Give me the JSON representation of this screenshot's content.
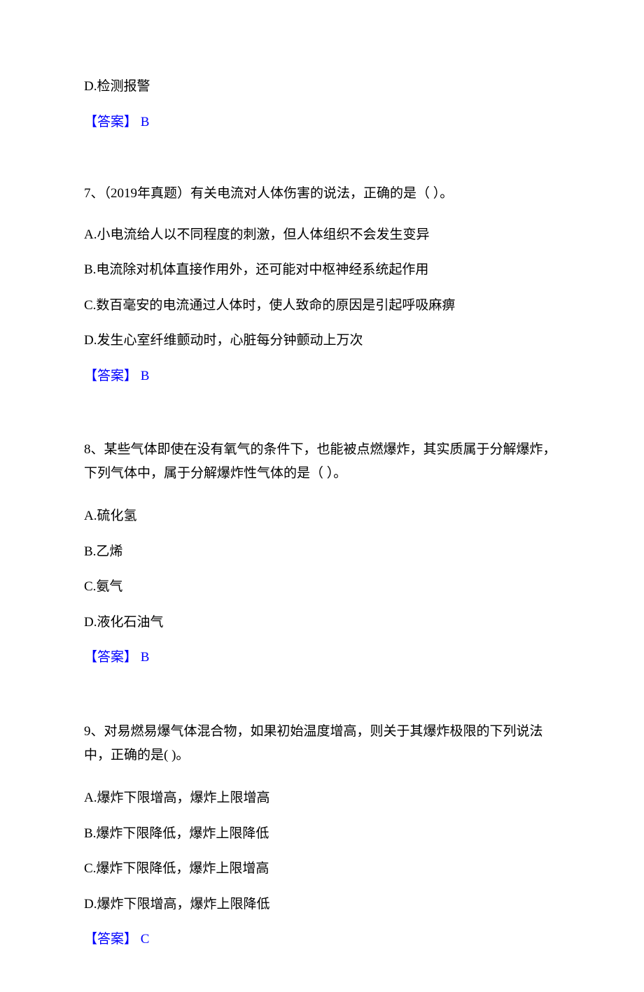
{
  "q6": {
    "optionD": "D.检测报警",
    "answerLabel": "【答案】",
    "answerValue": " B"
  },
  "q7": {
    "stem": "7、（2019年真题）有关电流对人体伤害的说法，正确的是（ ）。",
    "optionA": "A.小电流给人以不同程度的刺激，但人体组织不会发生变异",
    "optionB": "B.电流除对机体直接作用外，还可能对中枢神经系统起作用",
    "optionC": "C.数百毫安的电流通过人体时，使人致命的原因是引起呼吸麻痹",
    "optionD": "D.发生心室纤维颤动时，心脏每分钟颤动上万次",
    "answerLabel": "【答案】",
    "answerValue": " B"
  },
  "q8": {
    "stem": "8、某些气体即使在没有氧气的条件下，也能被点燃爆炸，其实质属于分解爆炸，下列气体中，属于分解爆炸性气体的是（ ）。",
    "optionA": "A.硫化氢",
    "optionB": "B.乙烯",
    "optionC": "C.氨气",
    "optionD": "D.液化石油气",
    "answerLabel": "【答案】",
    "answerValue": " B"
  },
  "q9": {
    "stem": "9、对易燃易爆气体混合物，如果初始温度增高，则关于其爆炸极限的下列说法中，正确的是( )。",
    "optionA": "A.爆炸下限增高，爆炸上限增高",
    "optionB": "B.爆炸下限降低，爆炸上限降低",
    "optionC": "C.爆炸下限降低，爆炸上限增高",
    "optionD": "D.爆炸下限增高，爆炸上限降低",
    "answerLabel": "【答案】",
    "answerValue": " C"
  }
}
